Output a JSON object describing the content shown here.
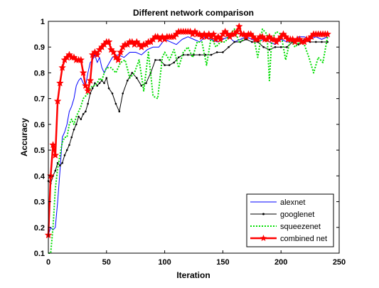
{
  "chart_data": {
    "type": "line",
    "title": "Different network comparison",
    "xlabel": "Iteration",
    "ylabel": "Accuracy",
    "xlim": [
      0,
      250
    ],
    "ylim": [
      0.1,
      1.0
    ],
    "xticks": [
      0,
      50,
      100,
      150,
      200,
      250
    ],
    "yticks": [
      0.1,
      0.2,
      0.3,
      0.4,
      0.5,
      0.6,
      0.7,
      0.8,
      0.9,
      1.0
    ],
    "xtick_labels": [
      "0",
      "50",
      "100",
      "150",
      "200",
      "250"
    ],
    "ytick_labels": [
      "0.1",
      "0.2",
      "0.3",
      "0.4",
      "0.5",
      "0.6",
      "0.7",
      "0.8",
      "0.9",
      "1"
    ],
    "grid": false,
    "legend_position": "bottom-right",
    "series": [
      {
        "name": "alexnet",
        "color": "#0000ff",
        "style": "solid",
        "marker": "none",
        "x": [
          0,
          2,
          4,
          6,
          8,
          10,
          12,
          14,
          16,
          18,
          20,
          22,
          24,
          26,
          28,
          30,
          32,
          34,
          36,
          38,
          40,
          42,
          44,
          46,
          48,
          50,
          55,
          60,
          65,
          70,
          75,
          80,
          85,
          90,
          95,
          100,
          105,
          110,
          115,
          120,
          125,
          130,
          135,
          140,
          145,
          150,
          155,
          160,
          165,
          170,
          175,
          180,
          185,
          190,
          195,
          200,
          205,
          210,
          215,
          220,
          225,
          230,
          235,
          240
        ],
        "y": [
          0.17,
          0.2,
          0.19,
          0.2,
          0.3,
          0.42,
          0.55,
          0.57,
          0.6,
          0.65,
          0.67,
          0.7,
          0.75,
          0.77,
          0.78,
          0.76,
          0.75,
          0.8,
          0.84,
          0.85,
          0.87,
          0.84,
          0.86,
          0.82,
          0.8,
          0.82,
          0.86,
          0.87,
          0.86,
          0.88,
          0.88,
          0.87,
          0.89,
          0.9,
          0.9,
          0.93,
          0.92,
          0.91,
          0.93,
          0.94,
          0.93,
          0.92,
          0.94,
          0.93,
          0.92,
          0.93,
          0.94,
          0.92,
          0.93,
          0.94,
          0.93,
          0.92,
          0.93,
          0.92,
          0.91,
          0.93,
          0.92,
          0.92,
          0.94,
          0.94,
          0.93,
          0.94,
          0.93,
          0.94
        ]
      },
      {
        "name": "googlenet",
        "color": "#000000",
        "style": "solid",
        "marker": "dot",
        "x": [
          0,
          2,
          4,
          6,
          8,
          10,
          12,
          14,
          16,
          18,
          20,
          22,
          24,
          26,
          28,
          30,
          32,
          34,
          36,
          38,
          40,
          42,
          44,
          46,
          48,
          50,
          52,
          55,
          58,
          61,
          64,
          68,
          72,
          76,
          80,
          84,
          88,
          92,
          96,
          100,
          104,
          108,
          112,
          116,
          120,
          125,
          130,
          135,
          140,
          145,
          150,
          155,
          160,
          165,
          170,
          175,
          180,
          185,
          190,
          195,
          200,
          205,
          210,
          215,
          220,
          225,
          230,
          235,
          240
        ],
        "y": [
          0.38,
          0.37,
          0.4,
          0.42,
          0.45,
          0.44,
          0.45,
          0.48,
          0.5,
          0.52,
          0.55,
          0.58,
          0.6,
          0.63,
          0.62,
          0.64,
          0.65,
          0.68,
          0.72,
          0.74,
          0.76,
          0.75,
          0.76,
          0.77,
          0.76,
          0.78,
          0.74,
          0.72,
          0.68,
          0.65,
          0.72,
          0.77,
          0.8,
          0.78,
          0.75,
          0.76,
          0.8,
          0.85,
          0.85,
          0.83,
          0.83,
          0.84,
          0.86,
          0.87,
          0.87,
          0.87,
          0.87,
          0.87,
          0.87,
          0.88,
          0.88,
          0.9,
          0.92,
          0.92,
          0.93,
          0.92,
          0.92,
          0.9,
          0.89,
          0.9,
          0.9,
          0.9,
          0.92,
          0.91,
          0.93,
          0.92,
          0.92,
          0.92,
          0.92
        ]
      },
      {
        "name": "squeezenet",
        "color": "#00dd00",
        "style": "dotted",
        "marker": "none",
        "x": [
          0,
          2,
          4,
          6,
          8,
          10,
          12,
          14,
          16,
          18,
          20,
          22,
          24,
          26,
          28,
          30,
          32,
          34,
          36,
          38,
          40,
          42,
          44,
          46,
          48,
          50,
          54,
          58,
          62,
          66,
          70,
          74,
          78,
          82,
          86,
          90,
          94,
          98,
          100,
          104,
          108,
          112,
          116,
          120,
          124,
          128,
          132,
          136,
          140,
          144,
          148,
          152,
          156,
          160,
          164,
          168,
          172,
          176,
          180,
          184,
          188,
          190,
          192,
          196,
          200,
          204,
          208,
          212,
          216,
          220,
          224,
          228,
          232,
          236,
          240
        ],
        "y": [
          0.1,
          0.1,
          0.2,
          0.35,
          0.43,
          0.48,
          0.53,
          0.55,
          0.55,
          0.6,
          0.62,
          0.6,
          0.63,
          0.65,
          0.67,
          0.7,
          0.71,
          0.72,
          0.74,
          0.75,
          0.75,
          0.76,
          0.78,
          0.77,
          0.8,
          0.82,
          0.82,
          0.8,
          0.84,
          0.85,
          0.78,
          0.8,
          0.85,
          0.73,
          0.88,
          0.71,
          0.7,
          0.86,
          0.88,
          0.85,
          0.89,
          0.82,
          0.88,
          0.9,
          0.86,
          0.92,
          0.92,
          0.83,
          0.94,
          0.9,
          0.92,
          0.92,
          0.95,
          0.97,
          0.92,
          0.93,
          0.95,
          0.95,
          0.86,
          0.97,
          0.95,
          0.77,
          0.93,
          0.96,
          0.95,
          0.85,
          0.93,
          0.9,
          0.92,
          0.91,
          0.86,
          0.8,
          0.86,
          0.84,
          0.94
        ]
      },
      {
        "name": "combined net",
        "color": "#ff0000",
        "style": "solid",
        "marker": "star",
        "x": [
          0,
          2,
          4,
          6,
          8,
          10,
          12,
          14,
          16,
          18,
          20,
          22,
          24,
          26,
          28,
          30,
          32,
          34,
          36,
          38,
          40,
          42,
          44,
          46,
          48,
          50,
          52,
          54,
          56,
          58,
          60,
          62,
          64,
          66,
          68,
          70,
          72,
          74,
          76,
          78,
          80,
          82,
          84,
          86,
          88,
          90,
          92,
          94,
          96,
          98,
          100,
          102,
          104,
          106,
          108,
          110,
          112,
          114,
          116,
          118,
          120,
          122,
          124,
          126,
          128,
          130,
          132,
          134,
          136,
          138,
          140,
          142,
          144,
          146,
          148,
          150,
          152,
          154,
          156,
          158,
          160,
          162,
          164,
          166,
          168,
          170,
          172,
          174,
          176,
          178,
          180,
          182,
          184,
          186,
          188,
          190,
          192,
          194,
          196,
          198,
          200,
          202,
          204,
          206,
          208,
          210,
          212,
          214,
          216,
          218,
          220,
          222,
          224,
          226,
          228,
          230,
          232,
          234,
          236,
          238,
          240
        ],
        "y": [
          0.17,
          0.4,
          0.52,
          0.48,
          0.69,
          0.76,
          0.82,
          0.85,
          0.86,
          0.87,
          0.86,
          0.86,
          0.85,
          0.85,
          0.85,
          0.8,
          0.75,
          0.73,
          0.77,
          0.87,
          0.88,
          0.87,
          0.89,
          0.9,
          0.91,
          0.92,
          0.92,
          0.89,
          0.88,
          0.86,
          0.85,
          0.88,
          0.9,
          0.91,
          0.91,
          0.92,
          0.92,
          0.91,
          0.92,
          0.91,
          0.9,
          0.91,
          0.91,
          0.92,
          0.92,
          0.93,
          0.94,
          0.94,
          0.93,
          0.94,
          0.93,
          0.94,
          0.94,
          0.94,
          0.94,
          0.95,
          0.96,
          0.96,
          0.96,
          0.96,
          0.96,
          0.96,
          0.95,
          0.96,
          0.95,
          0.95,
          0.94,
          0.95,
          0.94,
          0.95,
          0.94,
          0.95,
          0.93,
          0.94,
          0.93,
          0.95,
          0.96,
          0.95,
          0.94,
          0.95,
          0.95,
          0.96,
          0.98,
          0.95,
          0.95,
          0.94,
          0.95,
          0.95,
          0.94,
          0.93,
          0.93,
          0.94,
          0.94,
          0.93,
          0.93,
          0.94,
          0.93,
          0.93,
          0.92,
          0.93,
          0.94,
          0.95,
          0.94,
          0.93,
          0.93,
          0.93,
          0.92,
          0.93,
          0.93,
          0.92,
          0.92,
          0.93,
          0.93,
          0.94,
          0.95,
          0.95,
          0.95,
          0.95,
          0.95,
          0.95,
          0.95
        ]
      }
    ]
  }
}
